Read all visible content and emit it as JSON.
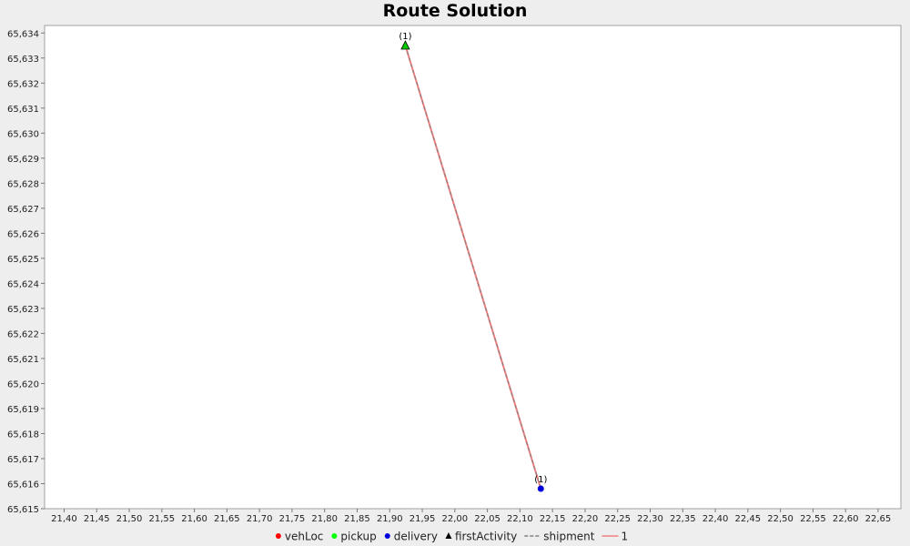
{
  "chart_data": {
    "type": "scatter",
    "title": "Route Solution",
    "xlabel": "",
    "ylabel": "",
    "xlim": [
      21.37,
      22.685
    ],
    "ylim": [
      65.615,
      65.6343
    ],
    "x_ticks": [
      "21,40",
      "21,45",
      "21,50",
      "21,55",
      "21,60",
      "21,65",
      "21,70",
      "21,75",
      "21,80",
      "21,85",
      "21,90",
      "21,95",
      "22,00",
      "22,05",
      "22,10",
      "22,15",
      "22,20",
      "22,25",
      "22,30",
      "22,35",
      "22,40",
      "22,45",
      "22,50",
      "22,55",
      "22,60",
      "22,65"
    ],
    "x_tick_values": [
      21.4,
      21.45,
      21.5,
      21.55,
      21.6,
      21.65,
      21.7,
      21.75,
      21.8,
      21.85,
      21.9,
      21.95,
      22.0,
      22.05,
      22.1,
      22.15,
      22.2,
      22.25,
      22.3,
      22.35,
      22.4,
      22.45,
      22.5,
      22.55,
      22.6,
      22.65
    ],
    "y_ticks": [
      "65,615",
      "65,616",
      "65,617",
      "65,618",
      "65,619",
      "65,620",
      "65,621",
      "65,622",
      "65,623",
      "65,624",
      "65,625",
      "65,626",
      "65,627",
      "65,628",
      "65,629",
      "65,630",
      "65,631",
      "65,632",
      "65,633",
      "65,634"
    ],
    "y_tick_values": [
      65.615,
      65.616,
      65.617,
      65.618,
      65.619,
      65.62,
      65.621,
      65.622,
      65.623,
      65.624,
      65.625,
      65.626,
      65.627,
      65.628,
      65.629,
      65.63,
      65.631,
      65.632,
      65.633,
      65.634
    ],
    "grid": false,
    "legend_position": "bottom",
    "series": [
      {
        "name": "vehLoc",
        "marker": "circle",
        "color": "#ff0000",
        "points": []
      },
      {
        "name": "pickup",
        "marker": "circle",
        "color": "#00ff00",
        "points": []
      },
      {
        "name": "delivery",
        "marker": "circle",
        "color": "#0000dd",
        "points": [
          {
            "x": 22.132,
            "y": 65.6158,
            "label": "(1)"
          }
        ]
      },
      {
        "name": "firstActivity",
        "marker": "triangle",
        "color": "#00cc00",
        "points": [
          {
            "x": 21.924,
            "y": 65.6335,
            "label": "(1)"
          }
        ]
      },
      {
        "name": "shipment",
        "marker": "dashed-line",
        "color": "#808080",
        "points": [
          {
            "x": 21.924,
            "y": 65.6335
          },
          {
            "x": 22.132,
            "y": 65.6158
          }
        ]
      },
      {
        "name": "1",
        "marker": "line",
        "color": "#f08080",
        "points": [
          {
            "x": 21.924,
            "y": 65.6335
          },
          {
            "x": 22.132,
            "y": 65.6158
          }
        ]
      }
    ],
    "legend": [
      {
        "label": "vehLoc",
        "symbol": "circle",
        "color": "#ff0000"
      },
      {
        "label": "pickup",
        "symbol": "circle",
        "color": "#00ff00"
      },
      {
        "label": "delivery",
        "symbol": "circle",
        "color": "#0000dd"
      },
      {
        "label": "firstActivity",
        "symbol": "triangle",
        "color": "#000000"
      },
      {
        "label": "shipment",
        "symbol": "dashed-line",
        "color": "#808080"
      },
      {
        "label": "1",
        "symbol": "line",
        "color": "#f08080"
      }
    ]
  }
}
